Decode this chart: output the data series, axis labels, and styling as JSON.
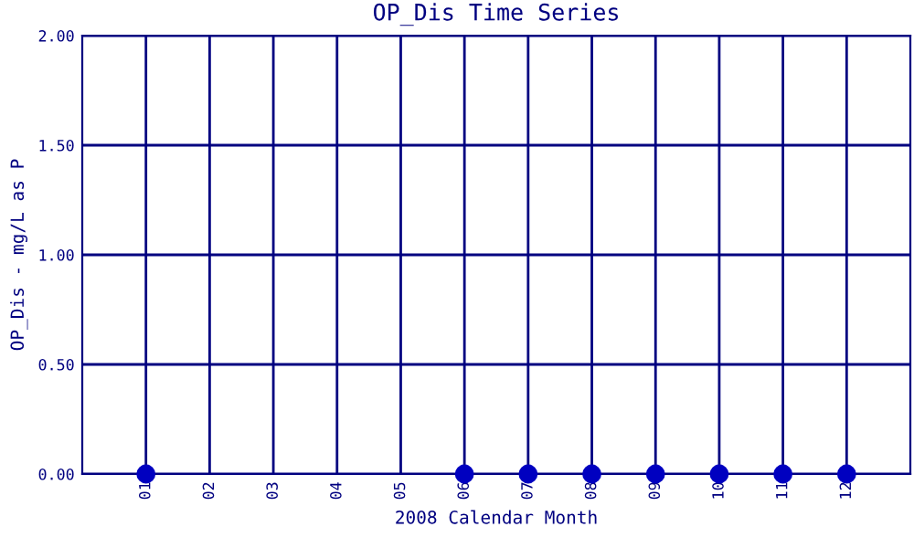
{
  "chart_data": {
    "type": "scatter",
    "title": "OP_Dis Time Series",
    "xlabel": "2008 Calendar Month",
    "ylabel": "OP_Dis - mg/L as P",
    "categories": [
      "01",
      "02",
      "03",
      "04",
      "05",
      "06",
      "07",
      "08",
      "09",
      "10",
      "11",
      "12"
    ],
    "series": [
      {
        "color": "#0000c0",
        "values": [
          0,
          null,
          null,
          null,
          null,
          0,
          0,
          0,
          0,
          0,
          0,
          0
        ]
      }
    ],
    "ylim": [
      0,
      2
    ],
    "yticks": [
      {
        "value": 0,
        "label": "0.00"
      },
      {
        "value": 0.5,
        "label": "0.50"
      },
      {
        "value": 1,
        "label": "1.00"
      },
      {
        "value": 1.5,
        "label": "1.50"
      },
      {
        "value": 2,
        "label": "2.00"
      }
    ],
    "grid": true,
    "marker": "circle"
  }
}
